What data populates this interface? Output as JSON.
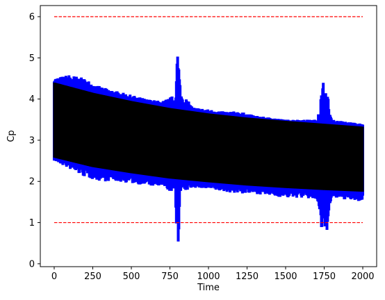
{
  "chart_data": {
    "type": "line",
    "title": "",
    "xlabel": "Time",
    "ylabel": "Cp",
    "xlim": [
      -90,
      2090
    ],
    "ylim": [
      -0.07,
      6.27
    ],
    "xticks": [
      0,
      250,
      500,
      750,
      1000,
      1250,
      1500,
      1750,
      2000
    ],
    "yticks": [
      0,
      1,
      2,
      3,
      4,
      5,
      6
    ],
    "grid": false,
    "legend": "none",
    "threshold_lines": [
      {
        "y": 6,
        "x_range": [
          0,
          2000
        ],
        "color": "#ff0000",
        "style": "dashed"
      },
      {
        "y": 1,
        "x_range": [
          0,
          2000
        ],
        "color": "#ff0000",
        "style": "dashed"
      }
    ],
    "series": [
      {
        "color": "#0000ff",
        "envelope_x": [
          0,
          100,
          200,
          300,
          400,
          500,
          600,
          700,
          780,
          800,
          820,
          900,
          1000,
          1100,
          1200,
          1300,
          1400,
          1500,
          1600,
          1700,
          1750,
          1800,
          1900,
          2000
        ],
        "envelope_upper": [
          4.5,
          4.6,
          4.5,
          4.3,
          4.2,
          4.1,
          4.0,
          3.95,
          4.1,
          5.4,
          4.2,
          3.8,
          3.75,
          3.7,
          3.7,
          3.6,
          3.55,
          3.5,
          3.5,
          3.5,
          4.6,
          3.5,
          3.45,
          3.4
        ],
        "envelope_lower": [
          2.5,
          2.3,
          2.1,
          2.0,
          2.0,
          1.95,
          1.9,
          1.85,
          1.7,
          0.2,
          1.7,
          1.85,
          1.8,
          1.75,
          1.7,
          1.7,
          1.65,
          1.6,
          1.6,
          1.55,
          0.35,
          1.6,
          1.55,
          1.5
        ]
      },
      {
        "color": "#000000",
        "envelope_x": [
          0,
          250,
          500,
          750,
          1000,
          1250,
          1500,
          1750,
          2000
        ],
        "envelope_upper": [
          4.4,
          4.15,
          3.95,
          3.78,
          3.65,
          3.55,
          3.47,
          3.4,
          3.33
        ],
        "envelope_lower": [
          2.58,
          2.35,
          2.2,
          2.07,
          1.98,
          1.9,
          1.84,
          1.79,
          1.75
        ]
      }
    ]
  }
}
